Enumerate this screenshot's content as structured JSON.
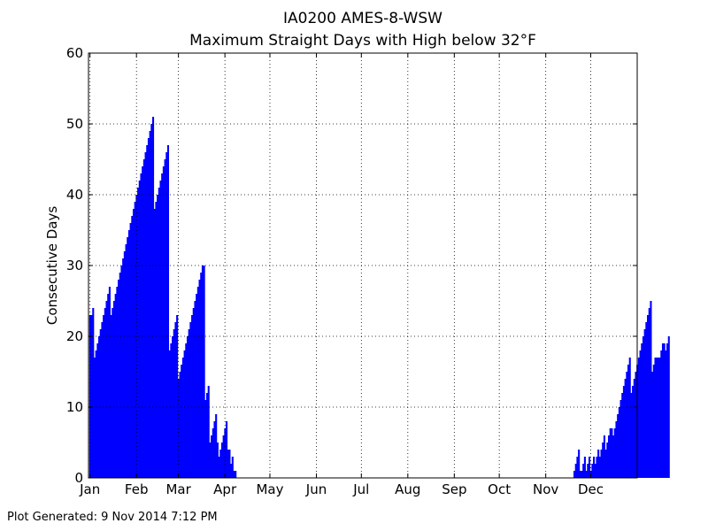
{
  "chart_data": {
    "type": "bar",
    "title": "IA0200 AMES-8-WSW",
    "subtitle": "Maximum Straight Days with High below 32°F",
    "ylabel": "Consecutive Days",
    "xlabel": "",
    "ylim": [
      0,
      60
    ],
    "yticks": [
      0,
      10,
      20,
      30,
      40,
      50,
      60
    ],
    "xlim": [
      0,
      366
    ],
    "xticks": [
      {
        "day": 1,
        "label": "Jan"
      },
      {
        "day": 32,
        "label": "Feb"
      },
      {
        "day": 60,
        "label": "Mar"
      },
      {
        "day": 91,
        "label": "Apr"
      },
      {
        "day": 121,
        "label": "May"
      },
      {
        "day": 152,
        "label": "Jun"
      },
      {
        "day": 182,
        "label": "Jul"
      },
      {
        "day": 213,
        "label": "Aug"
      },
      {
        "day": 244,
        "label": "Sep"
      },
      {
        "day": 274,
        "label": "Oct"
      },
      {
        "day": 305,
        "label": "Nov"
      },
      {
        "day": 335,
        "label": "Dec"
      }
    ],
    "grid": true,
    "bar_color": "#0000ff",
    "x_unit": "day of year",
    "values": [
      23,
      23,
      24,
      17,
      18,
      19,
      20,
      21,
      22,
      23,
      24,
      25,
      26,
      27,
      23,
      24,
      25,
      26,
      27,
      28,
      29,
      30,
      31,
      32,
      33,
      34,
      35,
      36,
      37,
      38,
      39,
      40,
      41,
      42,
      43,
      44,
      45,
      46,
      47,
      48,
      49,
      50,
      51,
      38,
      39,
      40,
      41,
      42,
      43,
      44,
      45,
      46,
      47,
      18,
      19,
      20,
      21,
      22,
      23,
      14,
      15,
      16,
      17,
      18,
      19,
      20,
      21,
      22,
      23,
      24,
      25,
      26,
      27,
      28,
      29,
      30,
      30,
      11,
      12,
      13,
      5,
      6,
      7,
      8,
      9,
      5,
      3,
      4,
      5,
      6,
      7,
      8,
      4,
      4,
      2,
      3,
      1,
      1,
      0,
      0,
      0,
      0,
      0,
      0,
      0,
      0,
      0,
      0,
      0,
      0,
      0,
      0,
      0,
      0,
      0,
      0,
      0,
      0,
      0,
      0,
      0,
      0,
      0,
      0,
      0,
      0,
      0,
      0,
      0,
      0,
      0,
      0,
      0,
      0,
      0,
      0,
      0,
      0,
      0,
      0,
      0,
      0,
      0,
      0,
      0,
      0,
      0,
      0,
      0,
      0,
      0,
      0,
      0,
      0,
      0,
      0,
      0,
      0,
      0,
      0,
      0,
      0,
      0,
      0,
      0,
      0,
      0,
      0,
      0,
      0,
      0,
      0,
      0,
      0,
      0,
      0,
      0,
      0,
      0,
      0,
      0,
      0,
      0,
      0,
      0,
      0,
      0,
      0,
      0,
      0,
      0,
      0,
      0,
      0,
      0,
      0,
      0,
      0,
      0,
      0,
      0,
      0,
      0,
      0,
      0,
      0,
      0,
      0,
      0,
      0,
      0,
      0,
      0,
      0,
      0,
      0,
      0,
      0,
      0,
      0,
      0,
      0,
      0,
      0,
      0,
      0,
      0,
      0,
      0,
      0,
      0,
      0,
      0,
      0,
      0,
      0,
      0,
      0,
      0,
      0,
      0,
      0,
      0,
      0,
      0,
      0,
      0,
      0,
      0,
      0,
      0,
      0,
      0,
      0,
      0,
      0,
      0,
      0,
      0,
      0,
      0,
      0,
      0,
      0,
      0,
      0,
      0,
      0,
      0,
      0,
      0,
      0,
      0,
      0,
      0,
      0,
      0,
      0,
      0,
      0,
      0,
      0,
      0,
      0,
      0,
      0,
      0,
      0,
      0,
      0,
      0,
      0,
      0,
      0,
      0,
      0,
      0,
      0,
      0,
      0,
      0,
      0,
      0,
      0,
      0,
      0,
      0,
      0,
      0,
      0,
      0,
      0,
      0,
      0,
      0,
      0,
      0,
      0,
      0,
      0,
      0,
      0,
      0,
      1,
      2,
      3,
      4,
      1,
      1,
      2,
      3,
      1,
      2,
      3,
      1,
      2,
      3,
      2,
      3,
      4,
      3,
      4,
      5,
      6,
      4,
      5,
      6,
      7,
      7,
      6,
      7,
      8,
      9,
      10,
      11,
      12,
      13,
      14,
      15,
      16,
      17,
      12,
      13,
      14,
      15,
      16,
      17,
      18,
      19,
      20,
      21,
      22,
      23,
      24,
      25,
      15,
      16,
      17,
      17,
      17,
      17,
      18,
      19,
      19,
      18,
      19,
      20
    ],
    "footer": "Plot Generated: 9 Nov 2014 7:12 PM"
  }
}
